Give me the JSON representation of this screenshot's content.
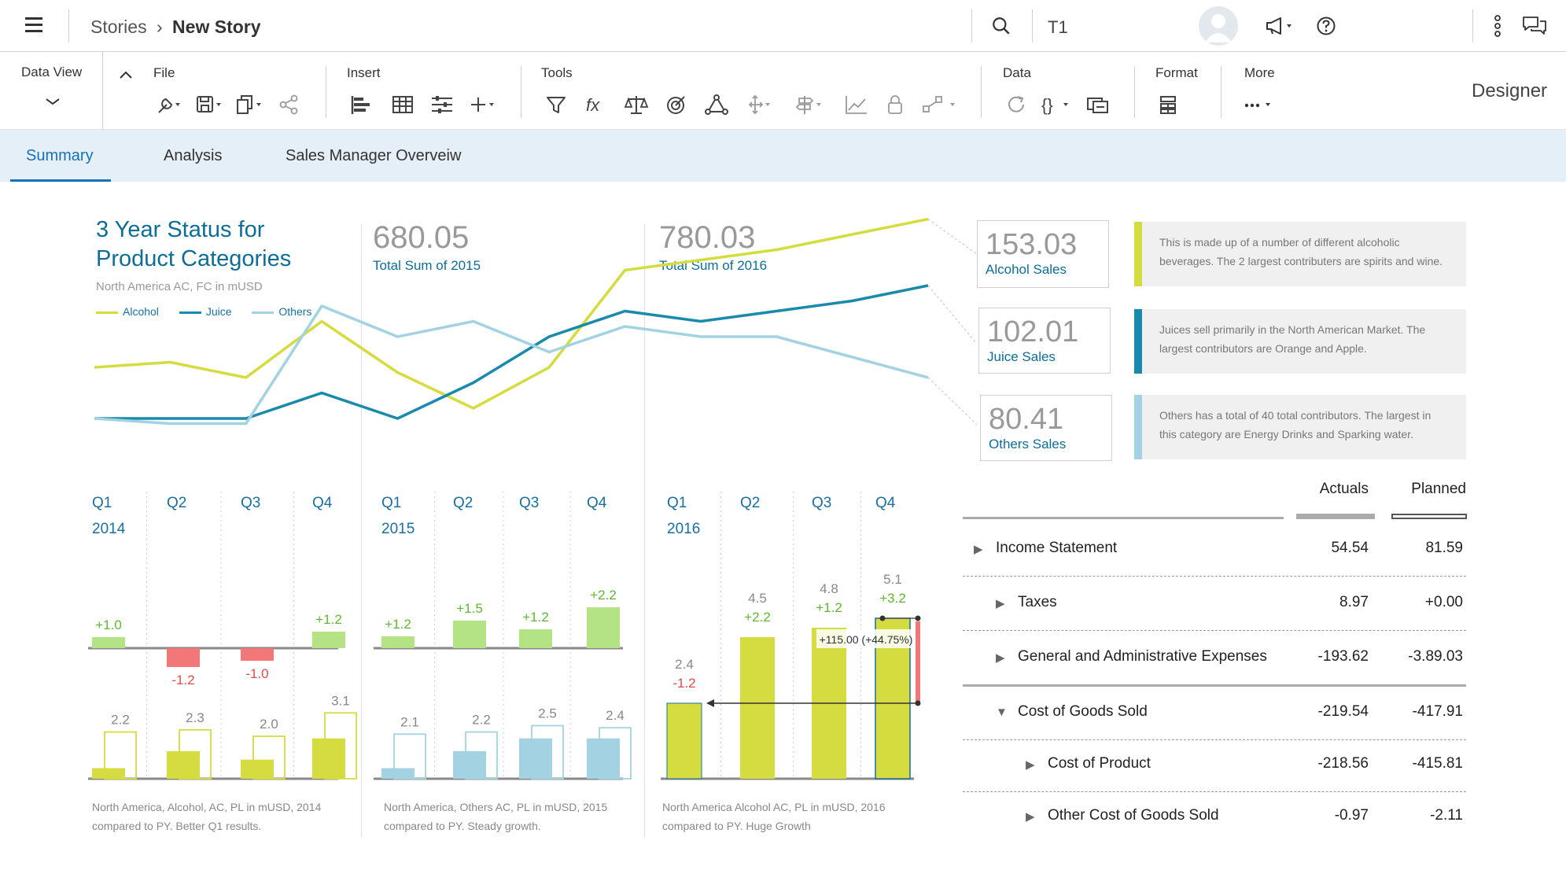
{
  "header": {
    "breadcrumb_root": "Stories",
    "breadcrumb_current": "New Story",
    "model_label": "T1"
  },
  "toolbar": {
    "data_view": "Data View",
    "file": "File",
    "insert": "Insert",
    "tools": "Tools",
    "data": "Data",
    "format": "Format",
    "more": "More",
    "mode": "Designer"
  },
  "tabs": [
    "Summary",
    "Analysis",
    "Sales Manager Overveiw"
  ],
  "overview": {
    "title_line1": "3 Year Status for",
    "title_line2": "Product Categories",
    "subtitle": "North America AC, FC in mUSD",
    "legend": [
      "Alcohol",
      "Juice",
      "Others"
    ],
    "total_2015": "680.05",
    "total_2015_label": "Total Sum of 2015",
    "total_2016": "780.03",
    "total_2016_label": "Total Sum of 2016"
  },
  "colors": {
    "alcohol": "#d4dc3f",
    "juice": "#1a8aac",
    "others": "#a3d3e2",
    "positive": "#5fb830",
    "negative": "#e64a4a",
    "accent": "#1672b7"
  },
  "cards": [
    {
      "value": "153.03",
      "label": "Alcohol Sales",
      "note_line1": "This is made up of a number of different alcoholic",
      "note_line2": "beverages. The 2 largest contributers are spirits and wine."
    },
    {
      "value": "102.01",
      "label": "Juice Sales",
      "note_line1": "Juices sell primarily in the North American Market. The",
      "note_line2": "largest contributors are Orange and Apple."
    },
    {
      "value": "80.41",
      "label": "Others Sales",
      "note_line1": "Others has a total of 40 total contributors. The largest  in",
      "note_line2": "this category are Energy Drinks and Sparking water."
    }
  ],
  "chart_data": [
    {
      "type": "line",
      "title": "3 Year Status for Product Categories",
      "subtitle": "North America AC, FC in mUSD",
      "x": [
        "2014 Q1",
        "2014 Q2",
        "2014 Q3",
        "2014 Q4",
        "2015 Q1",
        "2015 Q2",
        "2015 Q3",
        "2015 Q4",
        "2016 Q1",
        "2016 Q2",
        "2016 Q3",
        "2016 Q4"
      ],
      "series": [
        {
          "name": "Alcohol",
          "values": [
            2.2,
            2.3,
            2.0,
            3.1,
            2.1,
            1.4,
            2.2,
            4.1,
            4.3,
            4.5,
            4.8,
            5.1
          ]
        },
        {
          "name": "Juice",
          "values": [
            1.2,
            1.2,
            1.2,
            1.7,
            1.2,
            1.9,
            2.8,
            3.3,
            3.1,
            3.3,
            3.5,
            3.8
          ]
        },
        {
          "name": "Others",
          "values": [
            1.2,
            1.1,
            1.1,
            3.4,
            2.8,
            3.1,
            2.5,
            3.0,
            2.8,
            2.8,
            2.4,
            2.0
          ]
        }
      ],
      "legend_position": "top-left"
    },
    {
      "type": "bar",
      "year": "2014",
      "categories": [
        "Q1",
        "Q2",
        "Q3",
        "Q4"
      ],
      "delta_labels": [
        "+1.0",
        "-1.2",
        "-1.0",
        "+1.2"
      ],
      "deltas": [
        1.0,
        -1.2,
        -1.0,
        1.2
      ],
      "value_labels": [
        "2.2",
        "2.3",
        "2.0",
        "3.1"
      ],
      "ac": [
        0.5,
        1.3,
        0.9,
        1.9
      ],
      "py": [
        2.2,
        2.3,
        2.0,
        3.1
      ],
      "caption_line1": "North America, Alcohol, AC, PL in mUSD, 2014",
      "caption_line2": "compared to PY. Better Q1 results."
    },
    {
      "type": "bar",
      "year": "2015",
      "categories": [
        "Q1",
        "Q2",
        "Q3",
        "Q4"
      ],
      "delta_labels": [
        "+1.2",
        "+1.5",
        "+1.2",
        "+2.2"
      ],
      "deltas": [
        1.2,
        1.5,
        1.2,
        2.2
      ],
      "value_labels": [
        "2.1",
        "2.2",
        "2.5",
        "2.4"
      ],
      "ac": [
        0.5,
        1.3,
        1.9,
        1.9
      ],
      "py": [
        2.1,
        2.2,
        2.5,
        2.4
      ],
      "caption_line1": "North America, Others AC, PL in mUSD, 2015",
      "caption_line2": "compared to PY. Steady growth."
    },
    {
      "type": "bar",
      "year": "2016",
      "categories": [
        "Q1",
        "Q2",
        "Q3",
        "Q4"
      ],
      "delta_labels": [
        "-1.2",
        "+2.2",
        "+1.2",
        "+3.2"
      ],
      "deltas": [
        -1.2,
        2.2,
        1.2,
        3.2
      ],
      "value_labels": [
        "2.4",
        "4.5",
        "4.8",
        "5.1"
      ],
      "ac": [
        2.4,
        4.5,
        4.8,
        5.1
      ],
      "annotation": "+115.00 (+44.75%)",
      "caption_line1": "North America Alcohol AC, PL in mUSD, 2016",
      "caption_line2": "compared to PY. Huge Growth"
    }
  ],
  "table": {
    "col_actuals": "Actuals",
    "col_planned": "Planned",
    "rows": [
      {
        "label": "Income Statement",
        "actual": "54.54",
        "planned": "81.59",
        "indent": 0,
        "expanded": false
      },
      {
        "label": "Taxes",
        "actual": "8.97",
        "planned": "+0.00",
        "indent": 1,
        "expanded": false
      },
      {
        "label": "General and Administrative Expenses",
        "actual": "-193.62",
        "planned": "-3.89.03",
        "indent": 1,
        "expanded": false
      },
      {
        "label": "Cost of Goods Sold",
        "actual": "-219.54",
        "planned": "-417.91",
        "indent": 1,
        "expanded": true
      },
      {
        "label": "Cost of Product",
        "actual": "-218.56",
        "planned": "-415.81",
        "indent": 2,
        "expanded": false
      },
      {
        "label": "Other Cost of Goods Sold",
        "actual": "-0.97",
        "planned": "-2.11",
        "indent": 2,
        "expanded": false
      }
    ]
  }
}
